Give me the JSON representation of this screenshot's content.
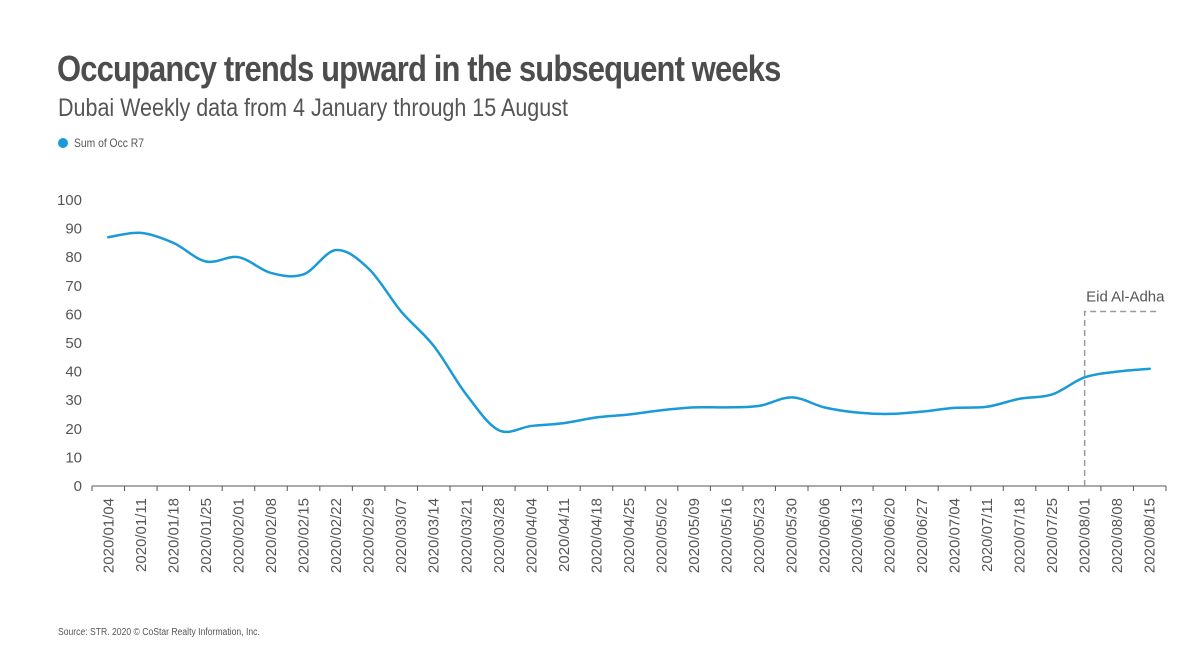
{
  "header": {
    "title": "Occupancy trends upward in the subsequent weeks",
    "subtitle": "Dubai Weekly data from 4 January through 15 August"
  },
  "legend": {
    "label": "Sum of Occ R7",
    "color": "#1a9ad6"
  },
  "footer": {
    "source": "Source: STR. 2020 © CoStar Realty Information, Inc."
  },
  "chart_data": {
    "type": "line",
    "title": "Occupancy trends upward in the subsequent weeks",
    "subtitle": "Dubai Weekly data from 4 January through 15 August",
    "xlabel": "",
    "ylabel": "",
    "ylim": [
      0,
      100
    ],
    "yticks": [
      0,
      10,
      20,
      30,
      40,
      50,
      60,
      70,
      80,
      90,
      100
    ],
    "grid": false,
    "legend_position": "top-left",
    "categories": [
      "2020/01/04",
      "2020/01/11",
      "2020/01/18",
      "2020/01/25",
      "2020/02/01",
      "2020/02/08",
      "2020/02/15",
      "2020/02/22",
      "2020/02/29",
      "2020/03/07",
      "2020/03/14",
      "2020/03/21",
      "2020/03/28",
      "2020/04/04",
      "2020/04/11",
      "2020/04/18",
      "2020/04/25",
      "2020/05/02",
      "2020/05/09",
      "2020/05/16",
      "2020/05/23",
      "2020/05/30",
      "2020/06/06",
      "2020/06/13",
      "2020/06/20",
      "2020/06/27",
      "2020/07/04",
      "2020/07/11",
      "2020/07/18",
      "2020/07/25",
      "2020/08/01",
      "2020/08/08",
      "2020/08/15"
    ],
    "series": [
      {
        "name": "Sum of Occ R7",
        "color": "#1a9ad6",
        "values": [
          87,
          88.5,
          85,
          78.5,
          80,
          74.5,
          74,
          82.5,
          76,
          61,
          49,
          32,
          19.5,
          21,
          22,
          24,
          25,
          26.5,
          27.5,
          27.5,
          28,
          31,
          27.5,
          25.7,
          25.2,
          26,
          27.3,
          27.7,
          30.5,
          32,
          38,
          40,
          41
        ]
      }
    ],
    "annotations": [
      {
        "label": "Eid Al-Adha",
        "category": "2020/08/01",
        "y": 61,
        "style": "dashed"
      }
    ]
  }
}
